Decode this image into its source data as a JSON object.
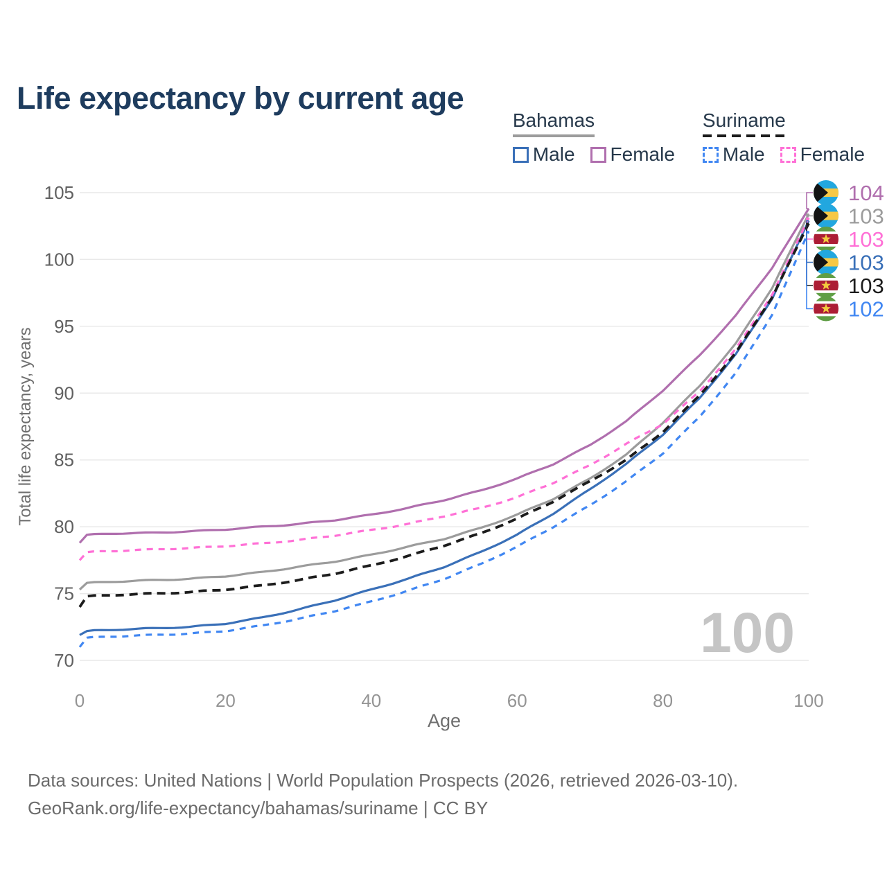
{
  "title": "Life expectancy by current age",
  "legend": {
    "groups": [
      {
        "label": "Bahamas",
        "underline_style": "solid",
        "underline_color": "#9c9c9c",
        "items": [
          {
            "label": "Male",
            "color": "#3a70b8",
            "dashed": false
          },
          {
            "label": "Female",
            "color": "#b06fae",
            "dashed": false
          }
        ]
      },
      {
        "label": "Suriname",
        "underline_style": "dashed",
        "underline_color": "#1c1c1c",
        "items": [
          {
            "label": "Male",
            "color": "#4187f2",
            "dashed": true
          },
          {
            "label": "Female",
            "color": "#ff70d6",
            "dashed": true
          }
        ]
      }
    ]
  },
  "chart_data": {
    "type": "line",
    "title": "Life expectancy by current age",
    "xlabel": "Age",
    "ylabel": "Total life expectancy, years",
    "xlim": [
      0,
      100
    ],
    "ylim": [
      70,
      105
    ],
    "xticks": [
      0,
      20,
      40,
      60,
      80,
      100
    ],
    "yticks": [
      70,
      75,
      80,
      85,
      90,
      95,
      100,
      105
    ],
    "grid": "horizontal",
    "grid_color": "#e9e9e9",
    "watermark": "100",
    "x": [
      0,
      1,
      5,
      10,
      15,
      20,
      25,
      30,
      35,
      40,
      45,
      50,
      55,
      60,
      65,
      70,
      75,
      80,
      85,
      90,
      95,
      100
    ],
    "series": [
      {
        "name": "Bahamas Female",
        "country": "Bahamas",
        "sex": "Female",
        "color": "#b06fae",
        "dash": "solid",
        "values": [
          78.8,
          79.4,
          79.5,
          79.55,
          79.65,
          79.8,
          80.0,
          80.2,
          80.5,
          80.9,
          81.4,
          82.0,
          82.7,
          83.6,
          84.7,
          86.1,
          87.9,
          90.2,
          92.8,
          95.8,
          99.4,
          103.8
        ],
        "end_label": "104"
      },
      {
        "name": "Bahamas",
        "country": "Bahamas",
        "sex": "Both",
        "color": "#9c9c9c",
        "dash": "solid",
        "values": [
          75.3,
          75.8,
          75.9,
          76.0,
          76.1,
          76.3,
          76.6,
          77.0,
          77.4,
          77.9,
          78.5,
          79.1,
          79.9,
          80.9,
          82.1,
          83.6,
          85.4,
          87.8,
          90.5,
          93.7,
          97.9,
          103.4
        ],
        "end_label": "103"
      },
      {
        "name": "Suriname Female",
        "country": "Suriname",
        "sex": "Female",
        "color": "#ff70d6",
        "dash": "dashed",
        "values": [
          77.5,
          78.1,
          78.2,
          78.3,
          78.4,
          78.55,
          78.75,
          79.0,
          79.35,
          79.75,
          80.2,
          80.8,
          81.4,
          82.2,
          83.3,
          84.6,
          86.2,
          87.7,
          90.1,
          93.3,
          97.4,
          103.1
        ],
        "end_label": "103"
      },
      {
        "name": "Bahamas Male",
        "country": "Bahamas",
        "sex": "Male",
        "color": "#3a70b8",
        "dash": "solid",
        "values": [
          71.9,
          72.2,
          72.3,
          72.4,
          72.5,
          72.75,
          73.2,
          73.8,
          74.5,
          75.3,
          76.1,
          77.0,
          78.1,
          79.4,
          81.0,
          82.8,
          84.7,
          86.9,
          89.6,
          92.9,
          97.1,
          102.9
        ],
        "end_label": "103"
      },
      {
        "name": "Suriname",
        "country": "Suriname",
        "sex": "Both",
        "color": "#1c1c1c",
        "dash": "dashed",
        "values": [
          74.0,
          74.8,
          74.9,
          75.0,
          75.1,
          75.3,
          75.6,
          76.0,
          76.5,
          77.1,
          77.8,
          78.6,
          79.5,
          80.6,
          81.9,
          83.4,
          85.0,
          87.1,
          89.8,
          93.0,
          97.2,
          102.7
        ],
        "end_label": "103"
      },
      {
        "name": "Suriname Male",
        "country": "Suriname",
        "sex": "Male",
        "color": "#4187f2",
        "dash": "dashed",
        "values": [
          71.0,
          71.7,
          71.8,
          71.9,
          72.0,
          72.2,
          72.6,
          73.1,
          73.7,
          74.4,
          75.2,
          76.1,
          77.2,
          78.5,
          80.0,
          81.6,
          83.4,
          85.5,
          88.2,
          91.5,
          95.9,
          102.1
        ],
        "end_label": "102"
      }
    ],
    "end_labels": [
      {
        "value": "104",
        "flag": "bahamas",
        "color": "#b06fae"
      },
      {
        "value": "103",
        "flag": "bahamas",
        "color": "#9c9c9c"
      },
      {
        "value": "103",
        "flag": "suriname",
        "color": "#ff70d6"
      },
      {
        "value": "103",
        "flag": "bahamas",
        "color": "#3a70b8"
      },
      {
        "value": "103",
        "flag": "suriname",
        "color": "#1c1c1c"
      },
      {
        "value": "102",
        "flag": "suriname",
        "color": "#4187f2"
      }
    ]
  },
  "footer": {
    "line1": "Data sources: United Nations | World Population Prospects (2026, retrieved 2026-03-10).",
    "line2": "GeoRank.org/life-expectancy/bahamas/suriname | CC BY"
  }
}
